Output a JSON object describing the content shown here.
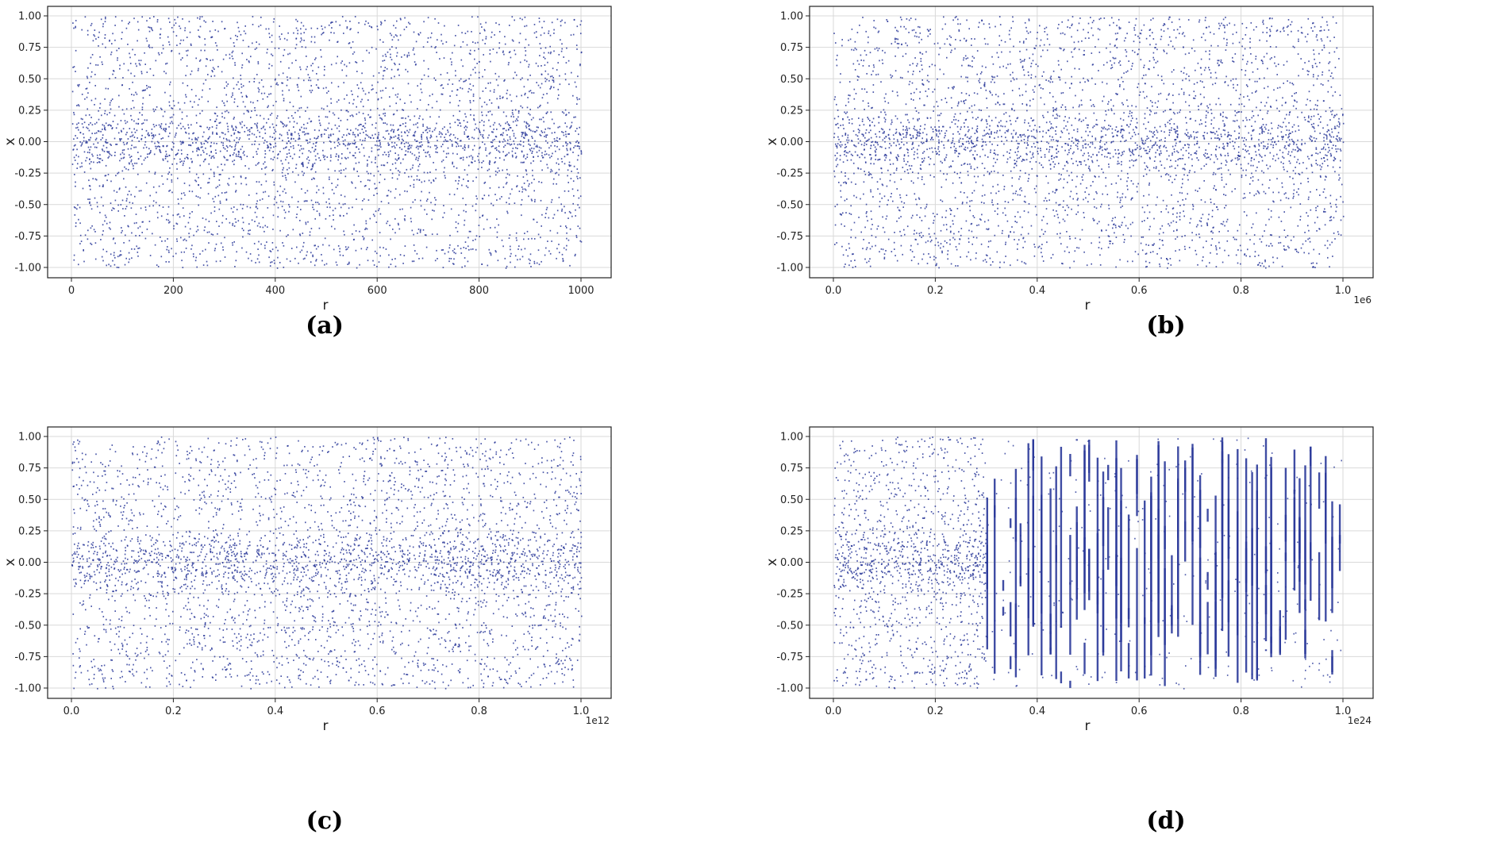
{
  "colors": {
    "points": "#2b3a9a",
    "grid": "#d9d9d9",
    "frame": "#222222"
  },
  "chart_data": [
    {
      "type": "scatter",
      "panel_label": "a",
      "xlabel": "r",
      "ylabel": "x",
      "x_range": [
        0,
        1000
      ],
      "ylim": [
        -1.0,
        1.0
      ],
      "x_offset_text": "",
      "x_ticks": [
        0,
        200,
        400,
        600,
        800,
        1000
      ],
      "x_tick_labels": [
        "0",
        "200",
        "400",
        "600",
        "800",
        "1000"
      ],
      "y_ticks": [
        1.0,
        0.75,
        0.5,
        0.25,
        0.0,
        -0.25,
        -0.5,
        -0.75,
        -1.0
      ],
      "y_tick_labels": [
        "1.00",
        "0.75",
        "0.50",
        "0.25",
        "0.00",
        "-0.25",
        "-0.50",
        "-0.75",
        "-1.00"
      ],
      "grid": true,
      "pattern": "dense uniform scatter filling x in [-1, 1], densest near x = 0"
    },
    {
      "type": "scatter",
      "panel_label": "b",
      "xlabel": "r",
      "ylabel": "x",
      "x_range": [
        0,
        1000000
      ],
      "ylim": [
        -1.0,
        1.0
      ],
      "x_offset_text": "1e6",
      "x_ticks": [
        0.0,
        0.2,
        0.4,
        0.6,
        0.8,
        1.0
      ],
      "x_tick_labels": [
        "0.0",
        "0.2",
        "0.4",
        "0.6",
        "0.8",
        "1.0"
      ],
      "y_ticks": [
        1.0,
        0.75,
        0.5,
        0.25,
        0.0,
        -0.25,
        -0.5,
        -0.75,
        -1.0
      ],
      "y_tick_labels": [
        "1.00",
        "0.75",
        "0.50",
        "0.25",
        "0.00",
        "-0.25",
        "-0.50",
        "-0.75",
        "-1.00"
      ],
      "grid": true,
      "pattern": "dense uniform scatter filling x in [-1, 1], densest near x = 0"
    },
    {
      "type": "scatter",
      "panel_label": "c",
      "xlabel": "r",
      "ylabel": "x",
      "x_range": [
        0,
        1000000000000
      ],
      "ylim": [
        -1.0,
        1.0
      ],
      "x_offset_text": "1e12",
      "x_ticks": [
        0.0,
        0.2,
        0.4,
        0.6,
        0.8,
        1.0
      ],
      "x_tick_labels": [
        "0.0",
        "0.2",
        "0.4",
        "0.6",
        "0.8",
        "1.0"
      ],
      "y_ticks": [
        1.0,
        0.75,
        0.5,
        0.25,
        0.0,
        -0.25,
        -0.5,
        -0.75,
        -1.0
      ],
      "y_tick_labels": [
        "1.00",
        "0.75",
        "0.50",
        "0.25",
        "0.00",
        "-0.25",
        "-0.50",
        "-0.75",
        "-1.00"
      ],
      "grid": true,
      "pattern": "dense uniform scatter filling x in [-1, 1], densest near x = 0"
    },
    {
      "type": "scatter",
      "panel_label": "d",
      "xlabel": "r",
      "ylabel": "x",
      "x_range": [
        0,
        1e+24
      ],
      "ylim": [
        -1.0,
        1.0
      ],
      "x_offset_text": "1e24",
      "x_ticks": [
        0.0,
        0.2,
        0.4,
        0.6,
        0.8,
        1.0
      ],
      "x_tick_labels": [
        "0.0",
        "0.2",
        "0.4",
        "0.6",
        "0.8",
        "1.0"
      ],
      "y_ticks": [
        1.0,
        0.75,
        0.5,
        0.25,
        0.0,
        -0.25,
        -0.5,
        -0.75,
        -1.0
      ],
      "y_tick_labels": [
        "1.00",
        "0.75",
        "0.50",
        "0.25",
        "0.00",
        "-0.25",
        "-0.50",
        "-0.75",
        "-1.00"
      ],
      "grid": true,
      "pattern": "dense scatter for r < 0.3e24, then separated vertical streaks at discrete r values"
    }
  ],
  "captions": [
    "(a)",
    "(b)",
    "(c)",
    "(d)"
  ]
}
